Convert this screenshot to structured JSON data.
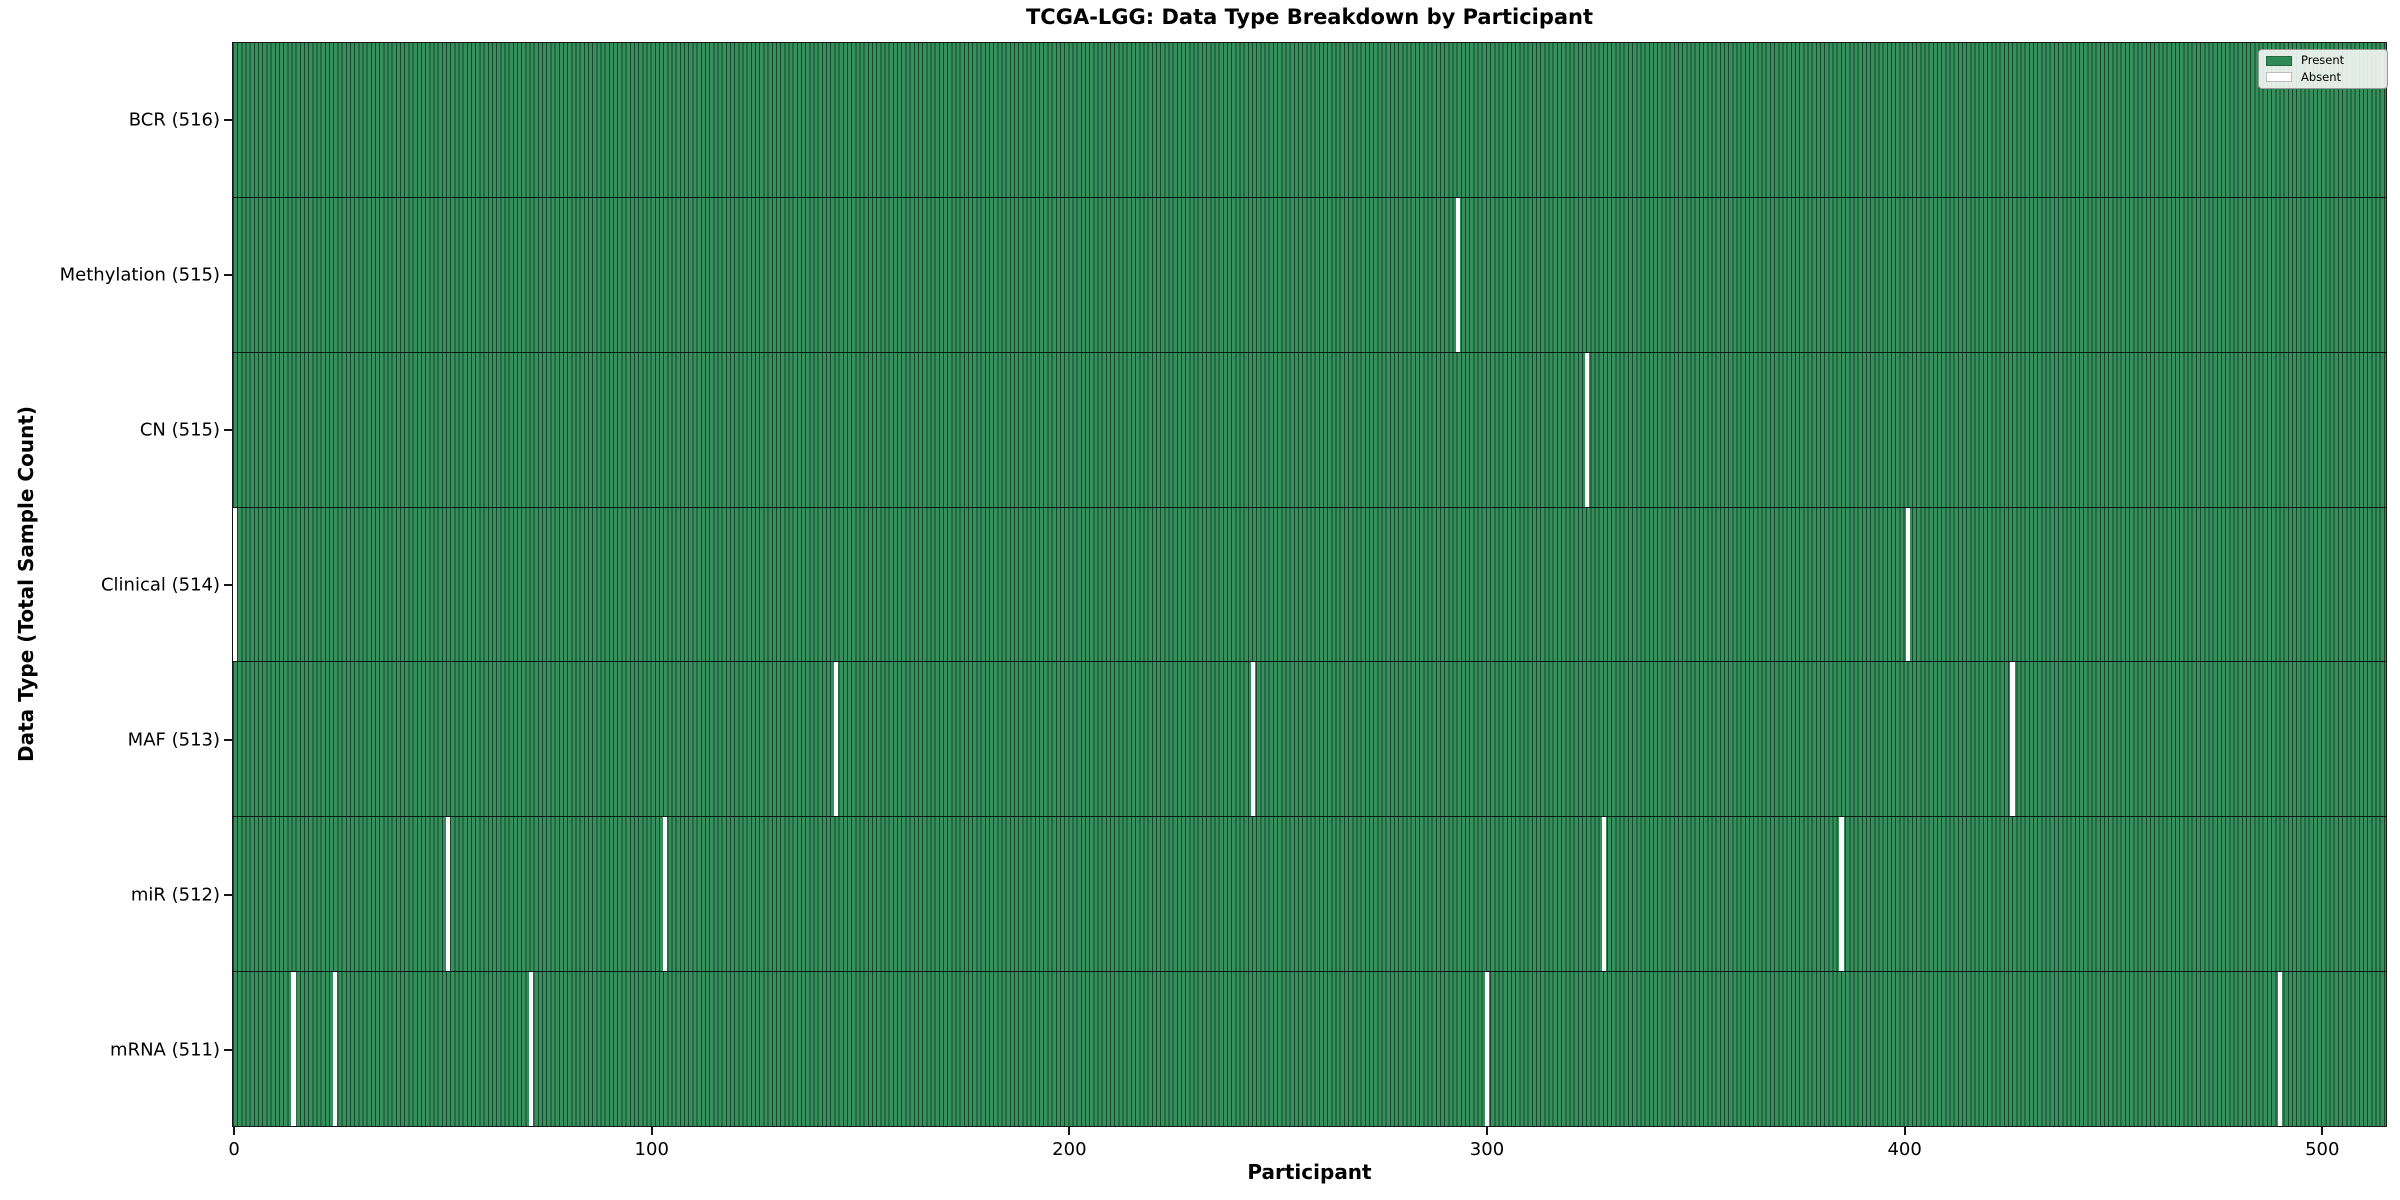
{
  "figure": {
    "title": "TCGA-LGG: Data Type Breakdown by Participant",
    "xlabel": "Participant",
    "ylabel": "Data Type (Total Sample Count)"
  },
  "legend": {
    "items": [
      {
        "label": "Present",
        "color": "#2e8b57"
      },
      {
        "label": "Absent",
        "color": "#ffffff"
      }
    ],
    "position": "upper right"
  },
  "chart_data": {
    "type": "heatmap",
    "title": "TCGA-LGG: Data Type Breakdown by Participant",
    "xlabel": "Participant",
    "ylabel": "Data Type (Total Sample Count)",
    "xlim": [
      -0.5,
      515.5
    ],
    "x_ticks": [
      0,
      100,
      200,
      300,
      400,
      500
    ],
    "n_participants": 516,
    "grid": false,
    "legend_position": "upper right",
    "colors": {
      "present": "#2e8b57",
      "absent": "#ffffff",
      "bar_edge": "#0c2e1b"
    },
    "value_encoding": {
      "1": "Present",
      "0": "Absent"
    },
    "rows": [
      {
        "label": "BCR (516)",
        "data_type": "BCR",
        "total_samples": 516,
        "absent_participants": []
      },
      {
        "label": "Methylation (515)",
        "data_type": "Methylation",
        "total_samples": 515,
        "absent_participants": [
          293
        ]
      },
      {
        "label": "CN (515)",
        "data_type": "CN",
        "total_samples": 515,
        "absent_participants": [
          324
        ]
      },
      {
        "label": "Clinical (514)",
        "data_type": "Clinical",
        "total_samples": 514,
        "absent_participants": [
          0,
          401
        ]
      },
      {
        "label": "MAF (513)",
        "data_type": "MAF",
        "total_samples": 513,
        "absent_participants": [
          144,
          244,
          426
        ]
      },
      {
        "label": "miR (512)",
        "data_type": "miR",
        "total_samples": 512,
        "absent_participants": [
          51,
          103,
          328,
          385
        ]
      },
      {
        "label": "mRNA (511)",
        "data_type": "mRNA",
        "total_samples": 511,
        "absent_participants": [
          14,
          24,
          71,
          300,
          490
        ]
      }
    ]
  }
}
